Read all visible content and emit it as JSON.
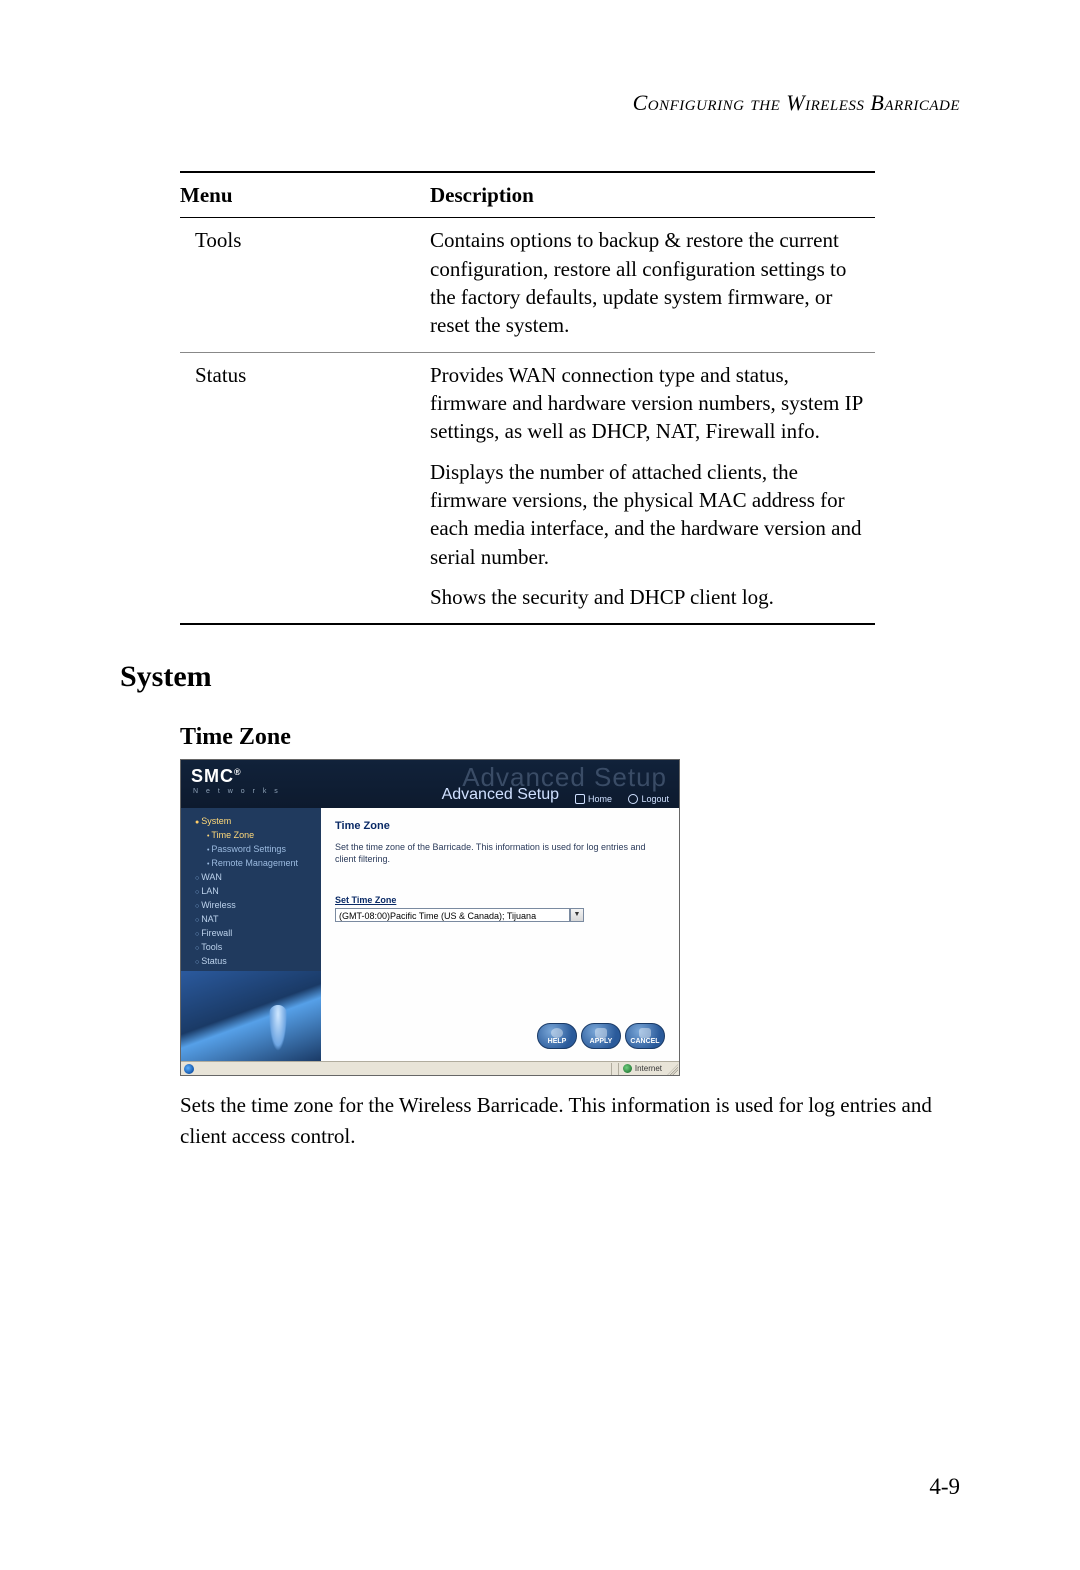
{
  "page": {
    "running_header": "Configuring the Wireless Barricade",
    "number": "4-9"
  },
  "table": {
    "headers": {
      "menu": "Menu",
      "description": "Description"
    },
    "rows": [
      {
        "menu": "Tools",
        "paragraphs": [
          "Contains options to backup & restore the current configuration, restore all configuration settings to the factory defaults, update system firmware, or reset the system."
        ]
      },
      {
        "menu": "Status",
        "paragraphs": [
          "Provides WAN connection type and status, firmware and hardware version numbers, system IP settings, as well as DHCP, NAT, Firewall info.",
          "Displays the number of attached clients, the firmware versions, the physical MAC address for each media interface, and the hardware version and serial number.",
          "Shows the security and DHCP client log."
        ]
      }
    ]
  },
  "section": {
    "title": "System"
  },
  "subsection": {
    "title": "Time Zone"
  },
  "caption": "Sets the time zone for the Wireless Barricade. This information is used for log entries and client access control.",
  "screenshot": {
    "brand": "SMC",
    "brand_reg": "®",
    "brand_sub": "N e t w o r k s",
    "ghost_title": "Advanced Setup",
    "title": "Advanced Setup",
    "home_label": "Home",
    "logout_label": "Logout",
    "sidebar": [
      {
        "label": "System",
        "type": "top",
        "expanded": true
      },
      {
        "label": "Time Zone",
        "type": "sub",
        "active": true
      },
      {
        "label": "Password Settings",
        "type": "sub"
      },
      {
        "label": "Remote Management",
        "type": "sub"
      },
      {
        "label": "WAN",
        "type": "top"
      },
      {
        "label": "LAN",
        "type": "top"
      },
      {
        "label": "Wireless",
        "type": "top"
      },
      {
        "label": "NAT",
        "type": "top"
      },
      {
        "label": "Firewall",
        "type": "top"
      },
      {
        "label": "Tools",
        "type": "top"
      },
      {
        "label": "Status",
        "type": "top"
      }
    ],
    "panel": {
      "heading": "Time Zone",
      "description": "Set the time zone of the Barricade. This information is used for log entries and client filtering.",
      "field_label": "Set Time Zone",
      "selected_option": "(GMT-08:00)Pacific Time (US & Canada); Tijuana"
    },
    "buttons": {
      "help": "HELP",
      "apply": "APPLY",
      "cancel": "CANCEL"
    },
    "statusbar": {
      "zone_label": "Internet"
    },
    "colors": {
      "header_bg": "#0d1a2e",
      "sidebar_bg": "#203a5e",
      "sidebar_text": "#bcd2ec",
      "active_text": "#ffd97a",
      "panel_heading": "#0a2a66",
      "button_bg": "#2a5a9a",
      "statusbar_bg": "#e8e4d8"
    }
  }
}
